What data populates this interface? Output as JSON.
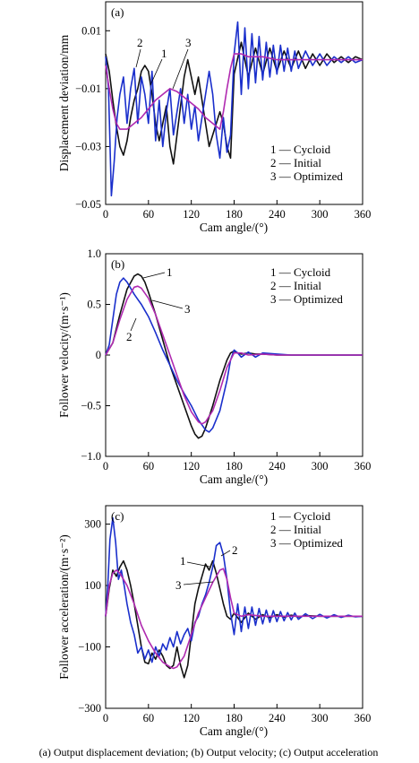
{
  "caption": "(a) Output displacement deviation; (b) Output velocity; (c) Output acceleration",
  "colors": {
    "cycloid": "#111111",
    "initial": "#1a2fcc",
    "optimized": "#b02ab0"
  },
  "chart_data": [
    {
      "type": "line",
      "panel": "(a)",
      "xlabel": "Cam angle/(°)",
      "ylabel": "Displacement deviation/mm",
      "xlim": [
        0,
        360
      ],
      "ylim": [
        -0.05,
        0.02
      ],
      "xticks": [
        0,
        60,
        120,
        180,
        240,
        300,
        360
      ],
      "yticks": [
        0.01,
        -0.01,
        -0.03,
        -0.05
      ],
      "ytick_labels": [
        "0.01",
        "−0.01",
        "−0.03",
        "−0.05"
      ],
      "legend": [
        "1 — Cycloid",
        "2 — Initial",
        "3 — Optimized"
      ],
      "annotations": [
        "1",
        "2",
        "3"
      ],
      "series": [
        {
          "name": "Cycloid",
          "x": [
            0,
            5,
            10,
            15,
            20,
            25,
            30,
            35,
            40,
            45,
            50,
            55,
            60,
            65,
            70,
            75,
            80,
            85,
            90,
            95,
            100,
            105,
            110,
            115,
            120,
            125,
            130,
            135,
            140,
            145,
            150,
            155,
            160,
            165,
            170,
            175,
            180,
            190,
            200,
            210,
            220,
            230,
            240,
            250,
            260,
            270,
            280,
            290,
            300,
            310,
            320,
            330,
            340,
            350,
            360
          ],
          "values": [
            0.002,
            -0.004,
            -0.014,
            -0.023,
            -0.03,
            -0.033,
            -0.028,
            -0.02,
            -0.014,
            -0.01,
            -0.004,
            -0.002,
            -0.004,
            -0.012,
            -0.022,
            -0.028,
            -0.022,
            -0.016,
            -0.03,
            -0.036,
            -0.026,
            -0.016,
            -0.006,
            0.0,
            -0.006,
            -0.012,
            -0.006,
            -0.014,
            -0.022,
            -0.03,
            -0.026,
            -0.022,
            -0.018,
            -0.022,
            -0.03,
            -0.034,
            -0.005,
            0.006,
            -0.006,
            0.004,
            -0.005,
            0.004,
            -0.004,
            0.003,
            -0.003,
            0.003,
            -0.003,
            0.002,
            -0.002,
            0.002,
            -0.001,
            0.001,
            -0.001,
            0.001,
            0.0
          ]
        },
        {
          "name": "Initial",
          "x": [
            0,
            4,
            8,
            12,
            16,
            20,
            25,
            30,
            35,
            40,
            45,
            50,
            55,
            60,
            65,
            70,
            75,
            80,
            85,
            90,
            95,
            100,
            105,
            110,
            115,
            120,
            125,
            130,
            135,
            140,
            145,
            150,
            155,
            160,
            165,
            170,
            175,
            180,
            185,
            190,
            195,
            200,
            205,
            210,
            215,
            220,
            225,
            230,
            235,
            240,
            245,
            250,
            255,
            260,
            265,
            270,
            280,
            290,
            300,
            310,
            320,
            330,
            340,
            350,
            360
          ],
          "values": [
            0.001,
            -0.01,
            -0.047,
            -0.035,
            -0.02,
            -0.012,
            -0.006,
            -0.022,
            -0.01,
            -0.003,
            -0.022,
            -0.006,
            -0.012,
            -0.022,
            -0.004,
            -0.028,
            -0.014,
            -0.03,
            -0.018,
            -0.01,
            -0.026,
            -0.018,
            -0.01,
            -0.022,
            -0.012,
            -0.024,
            -0.016,
            -0.028,
            -0.02,
            -0.012,
            -0.004,
            -0.012,
            -0.026,
            -0.034,
            -0.02,
            -0.032,
            -0.026,
            0.002,
            0.013,
            -0.012,
            0.011,
            -0.01,
            0.009,
            -0.008,
            0.008,
            -0.007,
            0.006,
            -0.006,
            0.005,
            -0.005,
            0.005,
            -0.004,
            0.004,
            -0.004,
            0.003,
            -0.003,
            0.003,
            -0.002,
            0.002,
            -0.002,
            0.001,
            -0.001,
            0.001,
            -0.001,
            0.0
          ]
        },
        {
          "name": "Optimized",
          "x": [
            0,
            5,
            10,
            15,
            20,
            30,
            40,
            50,
            60,
            70,
            80,
            90,
            100,
            110,
            120,
            130,
            140,
            150,
            160,
            165,
            170,
            175,
            180,
            190,
            200,
            220,
            240,
            260,
            280,
            300,
            320,
            340,
            360
          ],
          "values": [
            -0.002,
            -0.01,
            -0.017,
            -0.022,
            -0.024,
            -0.024,
            -0.022,
            -0.02,
            -0.017,
            -0.014,
            -0.012,
            -0.01,
            -0.011,
            -0.013,
            -0.015,
            -0.017,
            -0.02,
            -0.022,
            -0.024,
            -0.018,
            -0.01,
            -0.003,
            0.002,
            0.002,
            0.001,
            0.001,
            0.0,
            0.0,
            0.0,
            0.0,
            0.0,
            0.0,
            0.0
          ]
        }
      ]
    },
    {
      "type": "line",
      "panel": "(b)",
      "xlabel": "Cam angle/(°)",
      "ylabel": "Follower velocity/(m·s⁻¹)",
      "xlim": [
        0,
        360
      ],
      "ylim": [
        -1.0,
        1.0
      ],
      "xticks": [
        0,
        60,
        120,
        180,
        240,
        300,
        360
      ],
      "yticks": [
        1.0,
        0.5,
        0,
        -0.5,
        -1.0
      ],
      "ytick_labels": [
        "1.0",
        "0.5",
        "0",
        "−0.5",
        "−1.0"
      ],
      "legend": [
        "1 — Cycloid",
        "2 — Initial",
        "3 — Optimized"
      ],
      "annotations": [
        "1",
        "2",
        "3"
      ],
      "series": [
        {
          "name": "Cycloid",
          "x": [
            0,
            10,
            20,
            30,
            40,
            45,
            50,
            55,
            60,
            70,
            80,
            90,
            100,
            110,
            120,
            125,
            130,
            135,
            140,
            150,
            160,
            170,
            175,
            180,
            185,
            190,
            200,
            210,
            220,
            240,
            260,
            300,
            360
          ],
          "values": [
            0,
            0.12,
            0.4,
            0.65,
            0.78,
            0.8,
            0.78,
            0.72,
            0.62,
            0.4,
            0.15,
            -0.1,
            -0.3,
            -0.5,
            -0.7,
            -0.78,
            -0.82,
            -0.8,
            -0.72,
            -0.5,
            -0.25,
            -0.05,
            0.02,
            0.04,
            0.02,
            0.01,
            0.02,
            0.01,
            0.01,
            0.0,
            0.0,
            0.0,
            0.0
          ]
        },
        {
          "name": "Initial",
          "x": [
            0,
            5,
            10,
            15,
            20,
            25,
            30,
            35,
            40,
            45,
            50,
            55,
            60,
            70,
            80,
            90,
            100,
            110,
            120,
            130,
            140,
            145,
            150,
            160,
            170,
            175,
            180,
            185,
            190,
            200,
            210,
            220,
            240,
            260,
            280,
            300,
            360
          ],
          "values": [
            0,
            0.1,
            0.35,
            0.6,
            0.72,
            0.76,
            0.72,
            0.66,
            0.6,
            0.55,
            0.5,
            0.44,
            0.38,
            0.22,
            0.05,
            -0.1,
            -0.25,
            -0.38,
            -0.5,
            -0.64,
            -0.74,
            -0.76,
            -0.72,
            -0.55,
            -0.25,
            -0.05,
            0.05,
            0.02,
            -0.02,
            0.03,
            -0.02,
            0.02,
            0.01,
            0.0,
            0.0,
            0.0,
            0.0
          ]
        },
        {
          "name": "Optimized",
          "x": [
            0,
            10,
            20,
            30,
            40,
            45,
            50,
            60,
            70,
            80,
            90,
            100,
            110,
            120,
            130,
            135,
            140,
            150,
            160,
            170,
            180,
            190,
            200,
            220,
            240,
            300,
            360
          ],
          "values": [
            0,
            0.12,
            0.35,
            0.55,
            0.67,
            0.68,
            0.66,
            0.56,
            0.4,
            0.2,
            0.0,
            -0.2,
            -0.4,
            -0.56,
            -0.66,
            -0.68,
            -0.66,
            -0.55,
            -0.35,
            -0.12,
            0.02,
            0.02,
            0.0,
            0.01,
            0.0,
            0.0,
            0.0
          ]
        }
      ]
    },
    {
      "type": "line",
      "panel": "(c)",
      "xlabel": "Cam angle/(°)",
      "ylabel": "Follower acceleration/(m·s⁻²)",
      "xlim": [
        0,
        360
      ],
      "ylim": [
        -300,
        360
      ],
      "xticks": [
        0,
        60,
        120,
        180,
        240,
        300,
        360
      ],
      "yticks": [
        300,
        100,
        -100,
        -300
      ],
      "ytick_labels": [
        "300",
        "100",
        "−100",
        "−300"
      ],
      "legend": [
        "1 — Cycloid",
        "2 — Initial",
        "3 — Optimized"
      ],
      "annotations": [
        "1",
        "2",
        "3"
      ],
      "series": [
        {
          "name": "Cycloid",
          "x": [
            0,
            5,
            10,
            15,
            20,
            25,
            30,
            35,
            40,
            45,
            50,
            55,
            60,
            65,
            70,
            75,
            80,
            85,
            90,
            95,
            100,
            105,
            110,
            115,
            120,
            125,
            130,
            135,
            140,
            145,
            150,
            155,
            160,
            165,
            170,
            175,
            180,
            190,
            200,
            210,
            220,
            230,
            240,
            250,
            260,
            270,
            280,
            300,
            320,
            340,
            360
          ],
          "values": [
            0,
            90,
            150,
            130,
            160,
            180,
            150,
            100,
            40,
            -30,
            -100,
            -150,
            -155,
            -120,
            -140,
            -110,
            -130,
            -160,
            -170,
            -160,
            -100,
            -160,
            -200,
            -160,
            -60,
            40,
            90,
            130,
            170,
            150,
            180,
            140,
            90,
            40,
            0,
            -10,
            10,
            -20,
            10,
            -10,
            5,
            -5,
            5,
            -3,
            3,
            -2,
            2,
            0,
            0,
            0,
            0
          ]
        },
        {
          "name": "Initial",
          "x": [
            0,
            3,
            6,
            10,
            14,
            18,
            22,
            26,
            30,
            35,
            40,
            45,
            50,
            55,
            60,
            65,
            70,
            75,
            80,
            85,
            90,
            95,
            100,
            105,
            110,
            115,
            120,
            125,
            130,
            135,
            140,
            145,
            150,
            155,
            160,
            165,
            170,
            175,
            180,
            185,
            190,
            195,
            200,
            205,
            210,
            215,
            220,
            225,
            230,
            235,
            240,
            245,
            250,
            255,
            260,
            265,
            270,
            280,
            290,
            300,
            310,
            320,
            330,
            340,
            350,
            360
          ],
          "values": [
            0,
            100,
            250,
            320,
            240,
            120,
            150,
            100,
            40,
            -20,
            -60,
            -120,
            -100,
            -140,
            -110,
            -150,
            -100,
            -130,
            -90,
            -110,
            -70,
            -100,
            -50,
            -90,
            -60,
            -40,
            -80,
            -20,
            0,
            40,
            70,
            110,
            160,
            230,
            240,
            200,
            120,
            10,
            -60,
            40,
            -50,
            30,
            -40,
            30,
            -30,
            25,
            -25,
            20,
            -20,
            18,
            -18,
            15,
            -15,
            12,
            -12,
            10,
            -10,
            8,
            -8,
            6,
            -6,
            5,
            -4,
            3,
            -2,
            0
          ]
        },
        {
          "name": "Optimized",
          "x": [
            0,
            5,
            10,
            15,
            20,
            25,
            30,
            40,
            50,
            60,
            70,
            80,
            90,
            95,
            100,
            110,
            120,
            130,
            140,
            150,
            160,
            165,
            170,
            175,
            180,
            190,
            200,
            220,
            240,
            260,
            280,
            300,
            320,
            340,
            360
          ],
          "values": [
            0,
            100,
            140,
            150,
            140,
            120,
            100,
            40,
            -30,
            -80,
            -120,
            -150,
            -165,
            -170,
            -165,
            -130,
            -60,
            10,
            60,
            110,
            150,
            155,
            120,
            60,
            10,
            0,
            5,
            0,
            0,
            0,
            0,
            0,
            0,
            0,
            0
          ]
        }
      ]
    }
  ]
}
